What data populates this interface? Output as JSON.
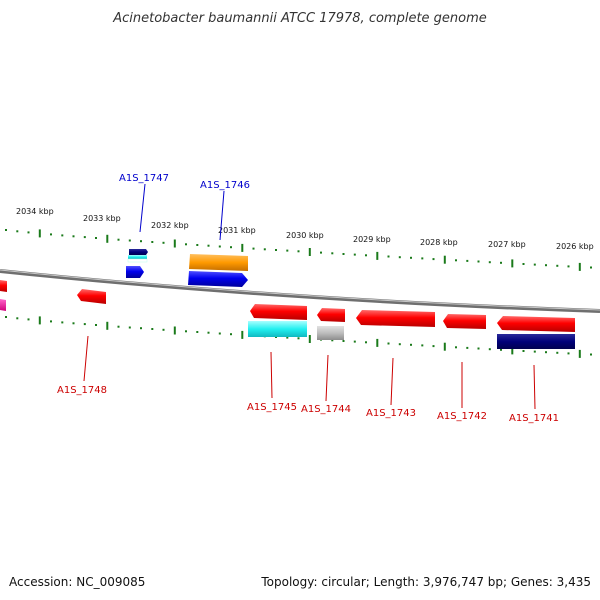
{
  "title": "Acinetobacter baumannii ATCC 17978, complete genome",
  "footer": {
    "accession": "Accession: NC_009085",
    "topology": "Topology: circular; Length: 3,976,747 bp; Genes: 3,435"
  },
  "tick_labels": [
    "2034 kbp",
    "2033 kbp",
    "2032 kbp",
    "2031 kbp",
    "2030 kbp",
    "2029 kbp",
    "2028 kbp",
    "2027 kbp",
    "2026 kbp"
  ],
  "gene_labels": {
    "a1s_1747": "A1S_1747",
    "a1s_1746": "A1S_1746",
    "a1s_1748": "A1S_1748",
    "a1s_1745": "A1S_1745",
    "a1s_1744": "A1S_1744",
    "a1s_1743": "A1S_1743",
    "a1s_1742": "A1S_1742",
    "a1s_1741": "A1S_1741"
  },
  "colors": {
    "forward_label": "#0000cc",
    "reverse_label": "#cc0000",
    "tick": "#1a7a1a",
    "backbone": "#888888"
  }
}
